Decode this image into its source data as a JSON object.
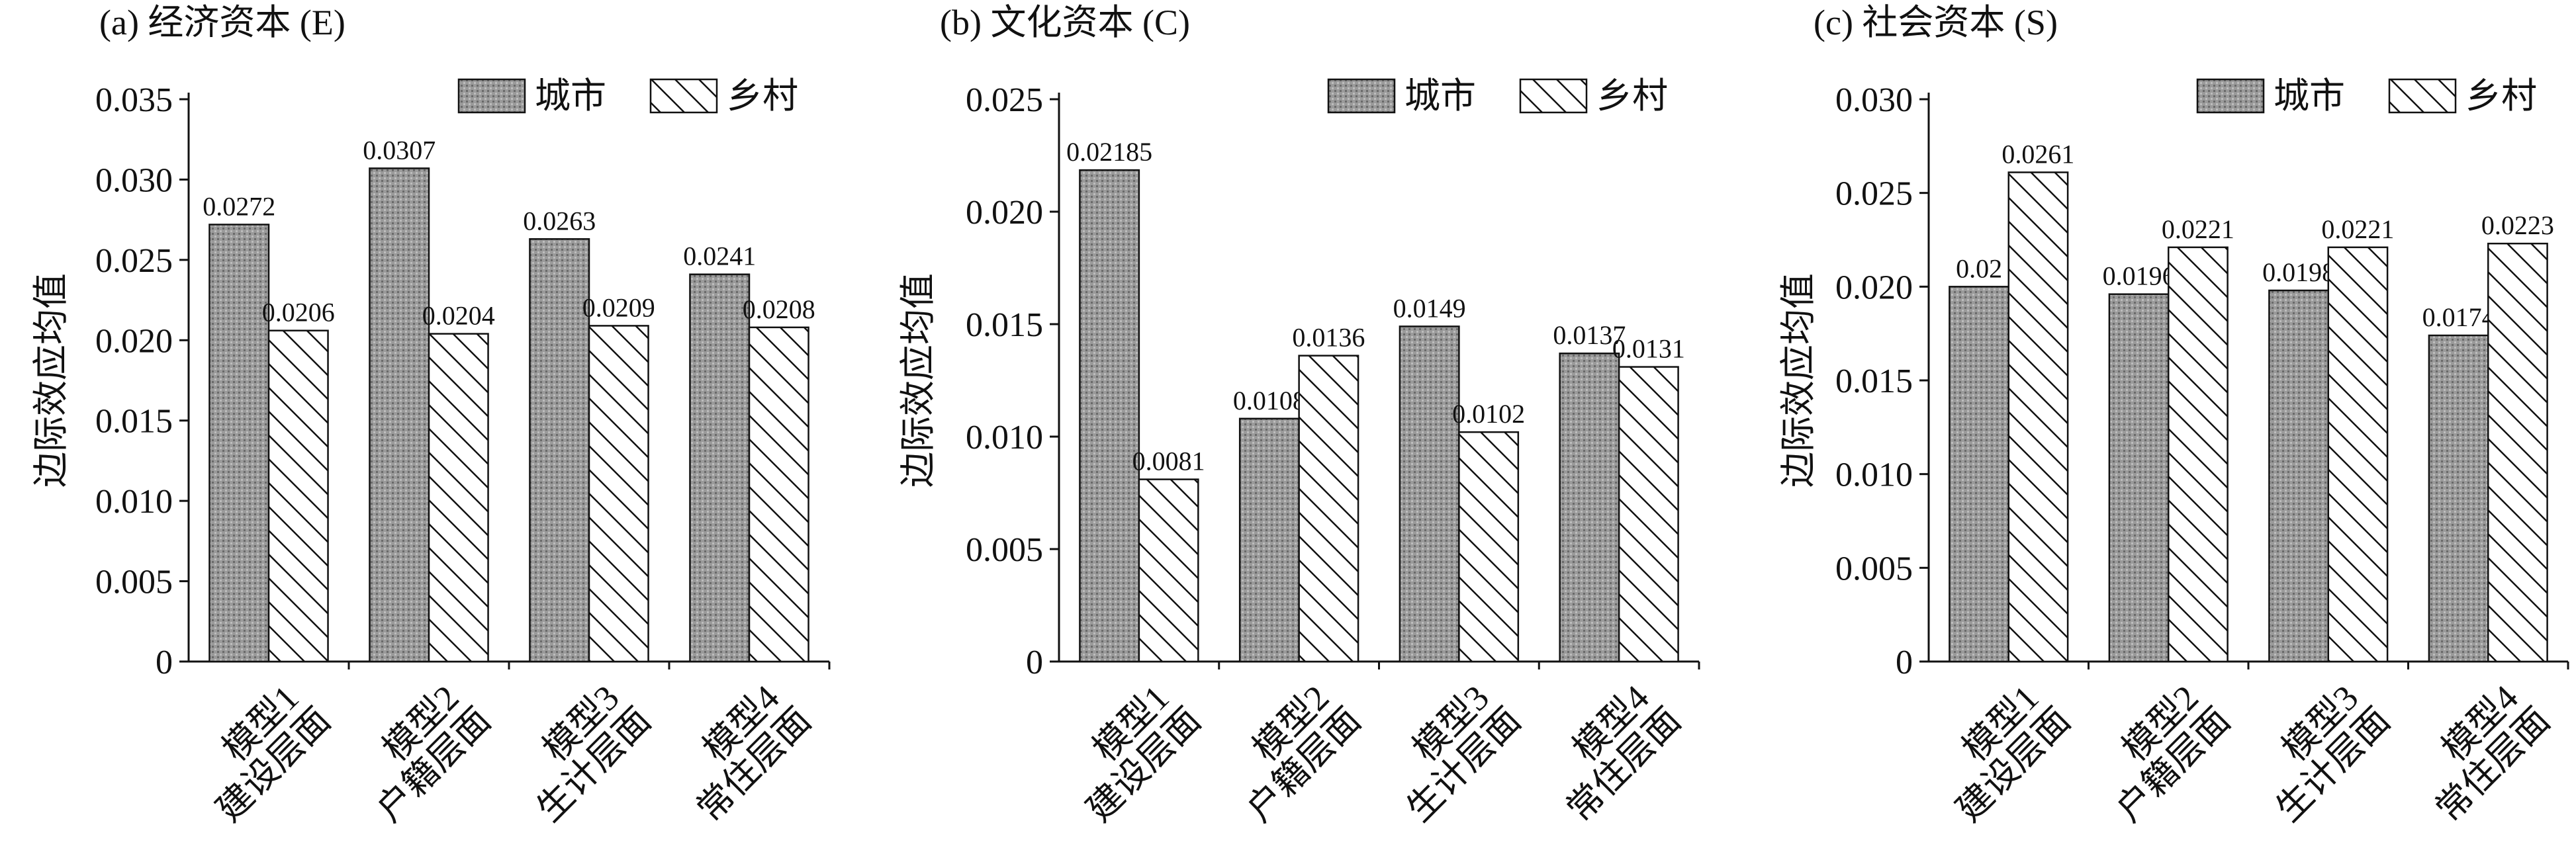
{
  "chart_data": [
    {
      "type": "bar",
      "title": "(a) 经济资本 (E)",
      "ylabel": "边际效应均值",
      "categories": [
        [
          "模型1",
          "建设层面"
        ],
        [
          "模型2",
          "户籍层面"
        ],
        [
          "模型3",
          "生计层面"
        ],
        [
          "模型4",
          "常住层面"
        ]
      ],
      "series": [
        {
          "name": "城市",
          "color": "#9a9a9a",
          "values": [
            0.0272,
            0.0307,
            0.0263,
            0.0241
          ]
        },
        {
          "name": "乡村",
          "color": "#ffffff",
          "values": [
            0.0206,
            0.0204,
            0.0209,
            0.0208
          ]
        }
      ],
      "ylim": [
        0,
        0.035
      ],
      "yticks": [
        0,
        0.005,
        {
          "value": 0.01,
          "label": "0.010"
        },
        0.015,
        {
          "value": 0.02,
          "label": "0.020"
        },
        0.025,
        {
          "value": 0.03,
          "label": "0.030"
        },
        0.035
      ],
      "legend": "top-right"
    },
    {
      "type": "bar",
      "title": "(b) 文化资本 (C)",
      "ylabel": "边际效应均值",
      "categories": [
        [
          "模型1",
          "建设层面"
        ],
        [
          "模型2",
          "户籍层面"
        ],
        [
          "模型3",
          "生计层面"
        ],
        [
          "模型4",
          "常住层面"
        ]
      ],
      "series": [
        {
          "name": "城市",
          "color": "#9a9a9a",
          "values": [
            0.02185,
            0.0108,
            0.0149,
            0.0137
          ]
        },
        {
          "name": "乡村",
          "color": "#ffffff",
          "values": [
            0.0081,
            0.0136,
            0.0102,
            0.0131
          ]
        }
      ],
      "ylim": [
        0,
        0.025
      ],
      "yticks": [
        0,
        0.005,
        {
          "value": 0.01,
          "label": "0.010"
        },
        0.015,
        {
          "value": 0.02,
          "label": "0.020"
        },
        0.025
      ],
      "legend": "top-right"
    },
    {
      "type": "bar",
      "title": "(c) 社会资本 (S)",
      "ylabel": "边际效应均值",
      "categories": [
        [
          "模型1",
          "建设层面"
        ],
        [
          "模型2",
          "户籍层面"
        ],
        [
          "模型3",
          "生计层面"
        ],
        [
          "模型4",
          "常住层面"
        ]
      ],
      "series": [
        {
          "name": "城市",
          "color": "#9a9a9a",
          "values": [
            0.02,
            0.0196,
            0.0198,
            0.0174
          ]
        },
        {
          "name": "乡村",
          "color": "#ffffff",
          "values": [
            0.0261,
            0.0221,
            0.0221,
            0.0223
          ]
        }
      ],
      "ylim": [
        0,
        0.03
      ],
      "yticks": [
        0,
        0.005,
        {
          "value": 0.01,
          "label": "0.010"
        },
        0.015,
        {
          "value": 0.02,
          "label": "0.020"
        },
        0.025,
        {
          "value": 0.03,
          "label": "0.030"
        }
      ],
      "legend": "top-right"
    }
  ]
}
